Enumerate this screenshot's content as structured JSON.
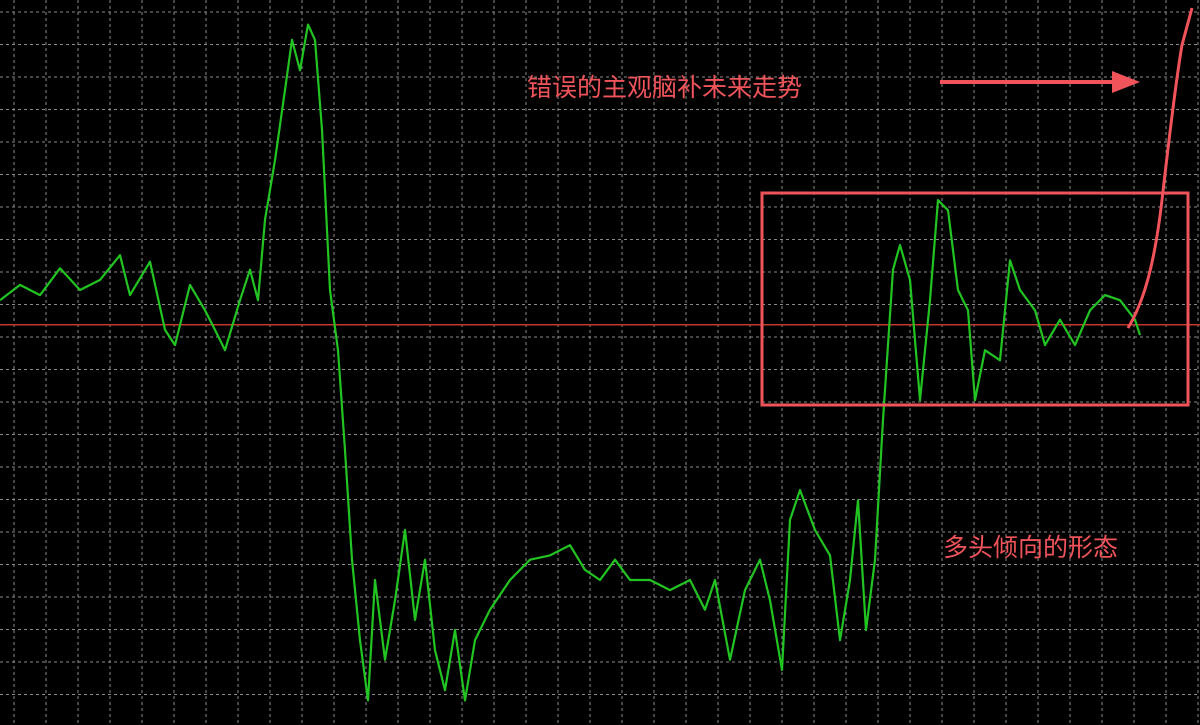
{
  "chart_data": {
    "type": "line",
    "title": "",
    "xlabel": "",
    "ylabel": "",
    "grid": true,
    "xlim": [
      0,
      120
    ],
    "ylim": [
      0,
      100
    ],
    "series": [
      {
        "color": "#22c422",
        "x": [
          0,
          2,
          4,
          6,
          8,
          10,
          12,
          13,
          15,
          16.5,
          17.5,
          19,
          20.5,
          21.5,
          22.5,
          24,
          25,
          25.8,
          26.5,
          27.5,
          28.5,
          29.2,
          30,
          30.8,
          31.5,
          32.2,
          33,
          33.8,
          34.5,
          35.2,
          36,
          36.8,
          37.5,
          38.5,
          39.5,
          40.5,
          41.5,
          42.5,
          43.5,
          44.5,
          45.5,
          46.5,
          47.5,
          49,
          51,
          53,
          55,
          57,
          58.5,
          60,
          61.5,
          63,
          65,
          67,
          69,
          70.5,
          71.5,
          73,
          74.5,
          76,
          77,
          78.2,
          79,
          80,
          81.5,
          83,
          84,
          85,
          85.8,
          86.6,
          87.5,
          88.3,
          89.3,
          90,
          91,
          92,
          93,
          93.8,
          94.8,
          95.8,
          96.8,
          97.5,
          98.5,
          100,
          101,
          102,
          103.5,
          104.5,
          106,
          107.5,
          109,
          110.5,
          112,
          113.5,
          114
        ],
        "y": [
          58.6,
          60.7,
          59.3,
          63,
          60,
          61.4,
          64.8,
          59.3,
          63.9,
          54.5,
          52.4,
          60.7,
          57.2,
          54.5,
          51.7,
          58.6,
          62.8,
          58.6,
          69.7,
          77.9,
          87.6,
          94.5,
          90.3,
          96.6,
          94.5,
          82.1,
          60,
          51.7,
          37.9,
          22.8,
          11.7,
          3.4,
          20,
          9,
          17.2,
          26.9,
          14.5,
          22.8,
          10.3,
          4.8,
          13.1,
          3.4,
          11.7,
          15.9,
          20,
          22.8,
          23.4,
          24.8,
          21.4,
          20,
          22.8,
          20,
          20,
          18.6,
          20,
          15.9,
          20,
          9,
          18.6,
          22.8,
          17.2,
          7.6,
          28.3,
          32.4,
          26.9,
          23.4,
          11.7,
          20,
          31,
          13.1,
          22.8,
          42.1,
          62.8,
          66.2,
          61.4,
          44.8,
          58.6,
          72.4,
          71,
          60,
          57.2,
          44.8,
          51.7,
          50.3,
          64.1,
          60,
          57.2,
          52.4,
          55.9,
          52.4,
          57.2,
          59.3,
          58.6,
          55.9,
          53.8
        ]
      }
    ],
    "reference_line": {
      "y": 55.2,
      "color": "#c0392b"
    },
    "annotations": {
      "projection_label": "错误的主观脑补未来走势",
      "pattern_label": "多头倾向的形态",
      "color": "#f0545a"
    }
  }
}
